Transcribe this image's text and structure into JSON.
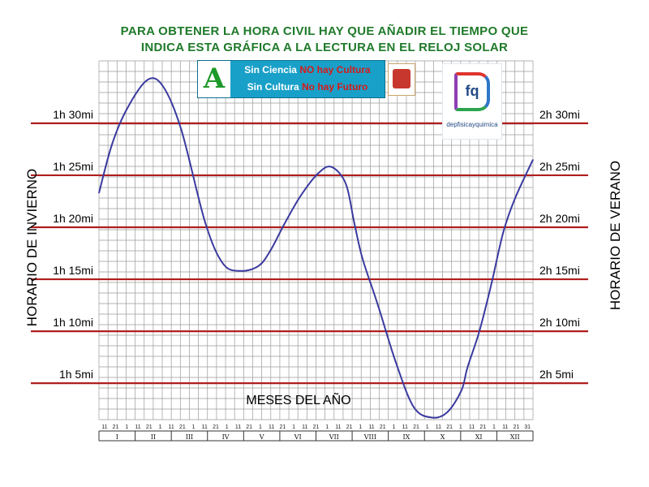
{
  "header": {
    "line1": "PARA OBTENER LA HORA CIVIL HAY QUE AÑADIR EL TIEMPO QUE",
    "line2": "INDICA ESTA GRÁFICA A LA LECTURA EN EL RELOJ SOLAR"
  },
  "logos": {
    "banner_line1_a": "Sin Ciencia ",
    "banner_line1_b": "NO hay Cultura",
    "banner_line2_a": "Sin Cultura ",
    "banner_line2_b": "No hay Futuro",
    "fq_mark": "fq",
    "fq_text": "depfisicayquimica"
  },
  "colors": {
    "title": "#1f7a2a",
    "curve": "#3a3aa0",
    "reference_lines": "#b01e1e",
    "grid": "#9a9a9a",
    "background": "#ffffff"
  },
  "chart_data": {
    "type": "line",
    "title": "PARA OBTENER LA HORA CIVIL HAY QUE AÑADIR EL TIEMPO QUE INDICA ESTA GRÁFICA A LA LECTURA EN EL RELOJ SOLAR",
    "xlabel": "MESES DEL AÑO",
    "ylabel_left": "HORARIO DE INVIERNO",
    "ylabel_right": "HORARIO DE VERANO",
    "months": [
      "I",
      "II",
      "III",
      "IV",
      "V",
      "VI",
      "VII",
      "VIII",
      "IX",
      "X",
      "XI",
      "XII"
    ],
    "day_ticks": [
      "11",
      "21",
      "1",
      "11",
      "21",
      "1",
      "11",
      "21",
      "1",
      "11",
      "21",
      "1",
      "11",
      "21",
      "1",
      "11",
      "21",
      "1",
      "11",
      "21",
      "1",
      "11",
      "21",
      "1",
      "11",
      "21",
      "1",
      "11",
      "21",
      "1",
      "11",
      "21",
      "1",
      "11",
      "21",
      "1",
      "11",
      "21",
      "31"
    ],
    "left_ticks": [
      "1h  5mi",
      "1h 10mi",
      "1h 15mi",
      "1h 20mi",
      "1h 25mi",
      "1h 30mi"
    ],
    "right_ticks": [
      "2h  5mi",
      "2h 10mi",
      "2h 15mi",
      "2h 20mi",
      "2h 25mi",
      "2h 30mi"
    ],
    "reference_minutes": [
      5,
      10,
      15,
      20,
      25,
      30
    ],
    "xlim": [
      1,
      365
    ],
    "ylim_minutes": [
      1.5,
      36
    ],
    "grid": true,
    "series": [
      {
        "day_of_year": [
          1,
          12,
          25,
          42,
          55,
          70,
          90,
          105,
          120,
          135,
          145,
          156,
          170,
          185,
          196,
          208,
          215,
          222,
          235,
          250,
          265,
          280,
          293,
          305,
          310,
          320,
          330,
          340,
          350,
          365
        ],
        "minutes": [
          23.3,
          28.0,
          31.5,
          34.2,
          33.5,
          29.4,
          20.5,
          16.5,
          15.8,
          16.3,
          17.8,
          20.2,
          23.0,
          25.2,
          25.8,
          24.2,
          20.5,
          17.0,
          12.5,
          7.0,
          2.7,
          1.7,
          2.2,
          4.3,
          6.5,
          10.0,
          14.5,
          19.5,
          22.8,
          26.5
        ]
      }
    ]
  }
}
